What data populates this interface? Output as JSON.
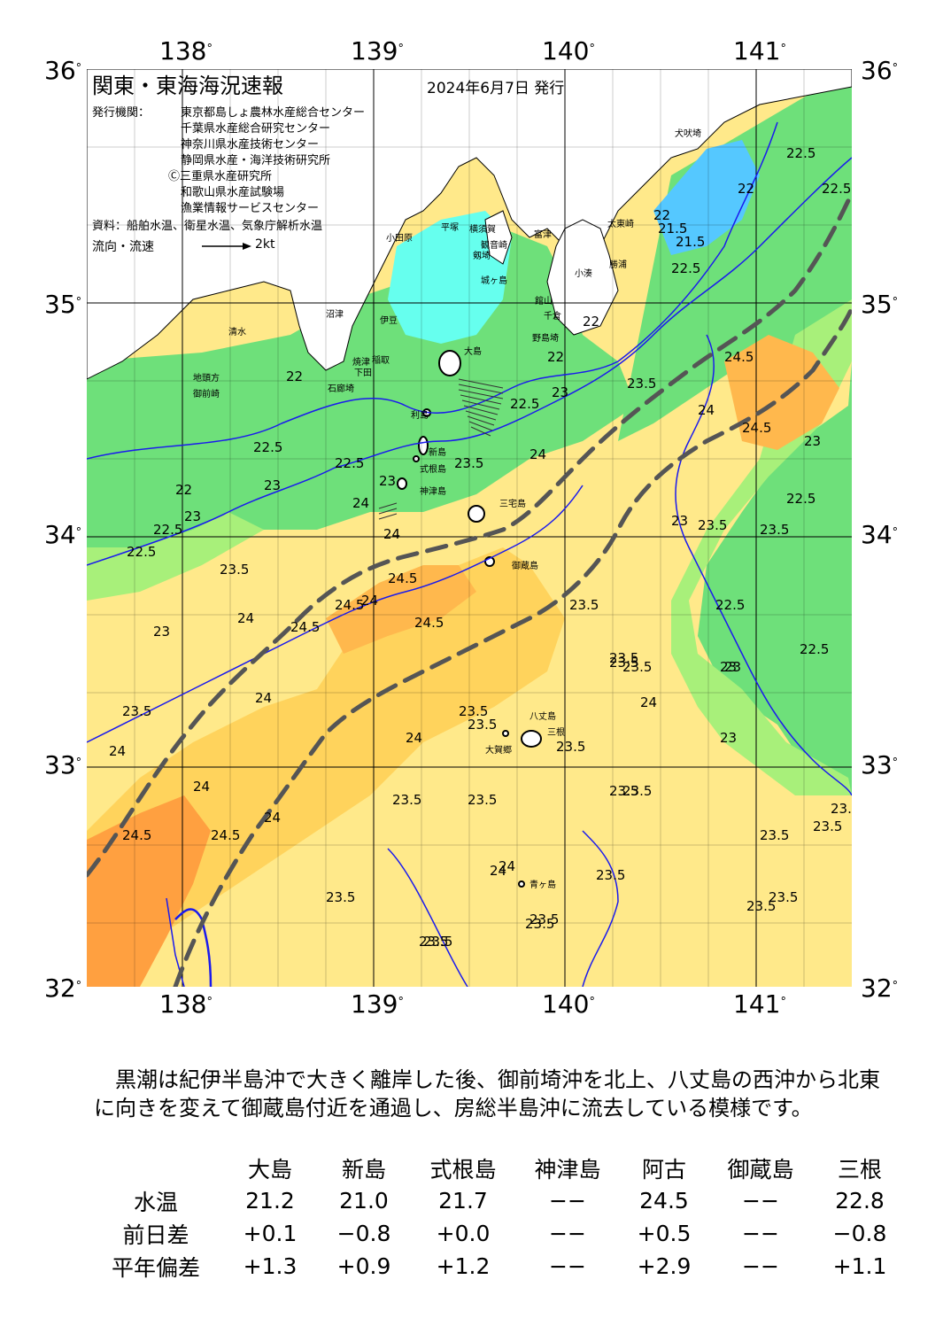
{
  "title": "関東・東海海況速報",
  "issue_date": "2024年6月7日 発行",
  "agencies_label": "発行機関：",
  "agencies": [
    "東京都島しょ農林水産総合センター",
    "千葉県水産総合研究センター",
    "神奈川県水産技術センター",
    "静岡県水産・海洋技術研究所",
    "Ⓒ三重県水産研究所",
    "和歌山県水産試験場",
    "漁業情報サービスセンター"
  ],
  "sources": "資料：船舶水温、衛星水温、気象庁解析水温",
  "current_legend": {
    "label": "流向・流速",
    "arrow_label": "2kt"
  },
  "longitude_ticks": [
    "138",
    "139",
    "140",
    "141"
  ],
  "latitude_ticks": [
    "36",
    "35",
    "34",
    "33",
    "32"
  ],
  "place_names": [
    "犬吠埼",
    "太東崎",
    "勝浦",
    "小湊",
    "館山",
    "千倉",
    "野島埼",
    "富津",
    "観音崎",
    "剱埼",
    "城ヶ島",
    "平塚",
    "横須賀",
    "小田原",
    "伊豆",
    "沼津",
    "清水",
    "焼津",
    "御前崎",
    "地頭方",
    "石廊埼",
    "下田",
    "稲取",
    "大島",
    "利島",
    "新島",
    "式根島",
    "神津島",
    "三宅島",
    "御蔵島",
    "八丈島",
    "三根",
    "大賀郷",
    "青ヶ島"
  ],
  "contour_labels": [
    "22.5",
    "22.5",
    "22",
    "22",
    "21.5",
    "21.5",
    "22.5",
    "22",
    "23",
    "22",
    "22.5",
    "22",
    "22.5",
    "22",
    "23",
    "22.5",
    "22.5",
    "23",
    "22.5",
    "23",
    "24",
    "24",
    "23.5",
    "24.5",
    "24.5",
    "24",
    "23.5",
    "24",
    "24.5",
    "24",
    "24",
    "24.5",
    "24.5",
    "24",
    "23.5",
    "23",
    "23.5",
    "23",
    "23.5",
    "24",
    "24.5",
    "23.5",
    "23.5",
    "23.5",
    "24",
    "23.5",
    "24",
    "24",
    "23.5",
    "23.5",
    "24",
    "24",
    "24.5",
    "24.5",
    "23.5",
    "23.5",
    "23.5",
    "24",
    "23.5",
    "23.5",
    "23.5",
    "23.5",
    "23.5",
    "23.5",
    "23",
    "23.5",
    "22.5",
    "22.5",
    "22.5",
    "23",
    "23",
    "23.5",
    "23.5",
    "23.5",
    "23",
    "23.5",
    "23.5",
    "23.5",
    "23.5"
  ],
  "summary": "黒潮は紀伊半島沖で大きく離岸した後、御前埼沖を北上、八丈島の西沖から北東に向きを変えて御蔵島付近を通過し、房総半島沖に流去している模様です。",
  "stats_table": {
    "columns": [
      "大島",
      "新島",
      "式根島",
      "神津島",
      "阿古",
      "御蔵島",
      "三根"
    ],
    "rows": [
      {
        "label": "水温",
        "values": [
          "21.2",
          "21.0",
          "21.7",
          "−−",
          "24.5",
          "−−",
          "22.8"
        ]
      },
      {
        "label": "前日差",
        "values": [
          "+0.1",
          "−0.8",
          "+0.0",
          "−−",
          "+0.5",
          "−−",
          "−0.8"
        ]
      },
      {
        "label": "平年偏差",
        "values": [
          "+1.3",
          "+0.9",
          "+1.2",
          "−−",
          "+2.9",
          "−−",
          "+1.1"
        ]
      }
    ]
  },
  "colors": {
    "land": "#ffffff",
    "sst_21": "#4da6ff",
    "sst_21_5": "#55c8ff",
    "sst_22": "#66ffee",
    "sst_22_5": "#66e080",
    "sst_23": "#99f066",
    "sst_23_5": "#ffff88",
    "sst_24": "#ffd966",
    "sst_24_5": "#ffb84d",
    "sst_25": "#ff9933",
    "contour": "#0000cc",
    "kuroshio_axis": "#555555"
  }
}
